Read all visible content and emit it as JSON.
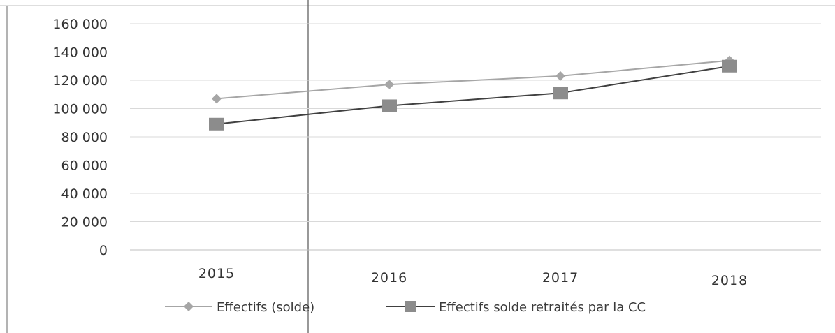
{
  "chart_data": {
    "type": "line",
    "categories": [
      "2015",
      "2016",
      "2017",
      "2018"
    ],
    "ylim": [
      0,
      160000
    ],
    "y_ticks": [
      "0",
      "20 000",
      "40 000",
      "60 000",
      "80 000",
      "100 000",
      "120 000",
      "140 000",
      "160 000"
    ],
    "grid": true,
    "legend_position": "bottom",
    "series": [
      {
        "name": "Effectifs (solde)",
        "marker": "diamond",
        "color": "#a6a6a6",
        "values": [
          107000,
          117000,
          123000,
          134000
        ]
      },
      {
        "name": "Effectifs solde retraités par la CC",
        "marker": "square",
        "color": "#404040",
        "marker_color": "#8c8c8c",
        "values": [
          89000,
          102000,
          111000,
          130000
        ]
      }
    ]
  }
}
